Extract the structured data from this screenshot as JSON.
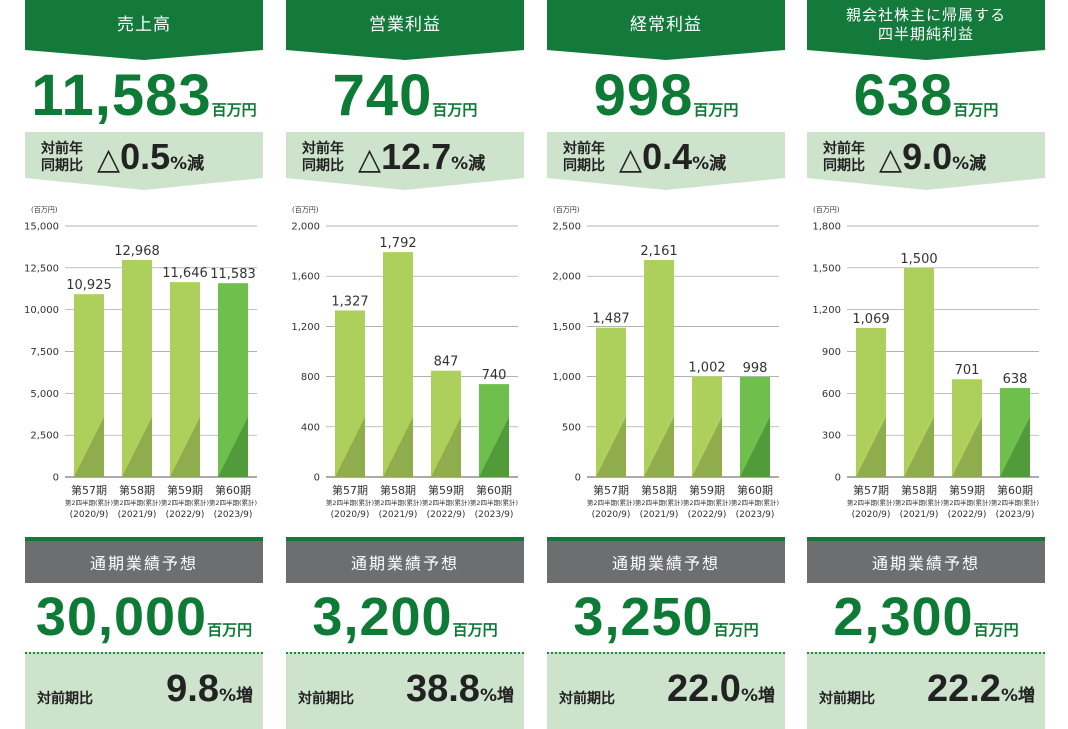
{
  "unit": "百万円",
  "axis_unit": "(百万円)",
  "panels": [
    {
      "title": "売上高",
      "value": "11,583",
      "cmp_label_1": "対前年",
      "cmp_label_2": "同期比",
      "change_symbol": "△",
      "change_value": "0.5",
      "change_unit": "%減",
      "forecast_title": "通期業績予想",
      "forecast_value": "30,000",
      "forecast_cmp_label": "対前期比",
      "forecast_change": "9.8",
      "forecast_change_unit": "%増"
    },
    {
      "title": "営業利益",
      "value": "740",
      "cmp_label_1": "対前年",
      "cmp_label_2": "同期比",
      "change_symbol": "△",
      "change_value": "12.7",
      "change_unit": "%減",
      "forecast_title": "通期業績予想",
      "forecast_value": "3,200",
      "forecast_cmp_label": "対前期比",
      "forecast_change": "38.8",
      "forecast_change_unit": "%増"
    },
    {
      "title": "経常利益",
      "value": "998",
      "cmp_label_1": "対前年",
      "cmp_label_2": "同期比",
      "change_symbol": "△",
      "change_value": "0.4",
      "change_unit": "%減",
      "forecast_title": "通期業績予想",
      "forecast_value": "3,250",
      "forecast_cmp_label": "対前期比",
      "forecast_change": "22.0",
      "forecast_change_unit": "%増"
    },
    {
      "title_line1": "親会社株主に帰属する",
      "title_line2": "四半期純利益",
      "value": "638",
      "cmp_label_1": "対前年",
      "cmp_label_2": "同期比",
      "change_symbol": "△",
      "change_value": "9.0",
      "change_unit": "%減",
      "forecast_title": "通期業績予想",
      "forecast_value": "2,300",
      "forecast_cmp_label": "対前期比",
      "forecast_change": "22.2",
      "forecast_change_unit": "%増"
    }
  ],
  "colors": {
    "header_green": "#137a3c",
    "value_green": "#0d7a35",
    "compare_bg": "#cde3cc",
    "bar_light": "#acd05b",
    "bar_light_shade": "#8fad4c",
    "bar_current": "#6ebf4c",
    "bar_current_shade": "#519b3b",
    "forecast_gray": "#6d6e70"
  },
  "chart_data": [
    {
      "type": "bar",
      "categories": [
        {
          "period": "第57期",
          "sub": "第2四半期(累計)",
          "year": "(2020/9)"
        },
        {
          "period": "第58期",
          "sub": "第2四半期(累計)",
          "year": "(2021/9)"
        },
        {
          "period": "第59期",
          "sub": "第2四半期(累計)",
          "year": "(2022/9)"
        },
        {
          "period": "第60期",
          "sub": "第2四半期(累計)",
          "year": "(2023/9)"
        }
      ],
      "values": [
        10925,
        12968,
        11646,
        11583
      ],
      "value_labels": [
        "10,925",
        "12,968",
        "11,646",
        "11,583"
      ],
      "yticks": [
        0,
        2500,
        5000,
        7500,
        10000,
        12500,
        15000
      ],
      "ytick_labels": [
        "0",
        "2,500",
        "5,000",
        "7,500",
        "10,000",
        "12,500",
        "15,000"
      ],
      "ylim": [
        0,
        15000
      ],
      "ylabel": "(百万円)",
      "grid": true
    },
    {
      "type": "bar",
      "categories": [
        {
          "period": "第57期",
          "sub": "第2四半期(累計)",
          "year": "(2020/9)"
        },
        {
          "period": "第58期",
          "sub": "第2四半期(累計)",
          "year": "(2021/9)"
        },
        {
          "period": "第59期",
          "sub": "第2四半期(累計)",
          "year": "(2022/9)"
        },
        {
          "period": "第60期",
          "sub": "第2四半期(累計)",
          "year": "(2023/9)"
        }
      ],
      "values": [
        1327,
        1792,
        847,
        740
      ],
      "value_labels": [
        "1,327",
        "1,792",
        "847",
        "740"
      ],
      "yticks": [
        0,
        400,
        800,
        1200,
        1600,
        2000
      ],
      "ytick_labels": [
        "0",
        "400",
        "800",
        "1,200",
        "1,600",
        "2,000"
      ],
      "ylim": [
        0,
        2000
      ],
      "ylabel": "(百万円)",
      "grid": true
    },
    {
      "type": "bar",
      "categories": [
        {
          "period": "第57期",
          "sub": "第2四半期(累計)",
          "year": "(2020/9)"
        },
        {
          "period": "第58期",
          "sub": "第2四半期(累計)",
          "year": "(2021/9)"
        },
        {
          "period": "第59期",
          "sub": "第2四半期(累計)",
          "year": "(2022/9)"
        },
        {
          "period": "第60期",
          "sub": "第2四半期(累計)",
          "year": "(2023/9)"
        }
      ],
      "values": [
        1487,
        2161,
        1002,
        998
      ],
      "value_labels": [
        "1,487",
        "2,161",
        "1,002",
        "998"
      ],
      "yticks": [
        0,
        500,
        1000,
        1500,
        2000,
        2500
      ],
      "ytick_labels": [
        "0",
        "500",
        "1,000",
        "1,500",
        "2,000",
        "2,500"
      ],
      "ylim": [
        0,
        2500
      ],
      "ylabel": "(百万円)",
      "grid": true
    },
    {
      "type": "bar",
      "categories": [
        {
          "period": "第57期",
          "sub": "第2四半期(累計)",
          "year": "(2020/9)"
        },
        {
          "period": "第58期",
          "sub": "第2四半期(累計)",
          "year": "(2021/9)"
        },
        {
          "period": "第59期",
          "sub": "第2四半期(累計)",
          "year": "(2022/9)"
        },
        {
          "period": "第60期",
          "sub": "第2四半期(累計)",
          "year": "(2023/9)"
        }
      ],
      "values": [
        1069,
        1500,
        701,
        638
      ],
      "value_labels": [
        "1,069",
        "1,500",
        "701",
        "638"
      ],
      "yticks": [
        0,
        300,
        600,
        900,
        1200,
        1500,
        1800
      ],
      "ytick_labels": [
        "0",
        "300",
        "600",
        "900",
        "1,200",
        "1,500",
        "1,800"
      ],
      "ylim": [
        0,
        1800
      ],
      "ylabel": "(百万円)",
      "grid": true
    }
  ]
}
